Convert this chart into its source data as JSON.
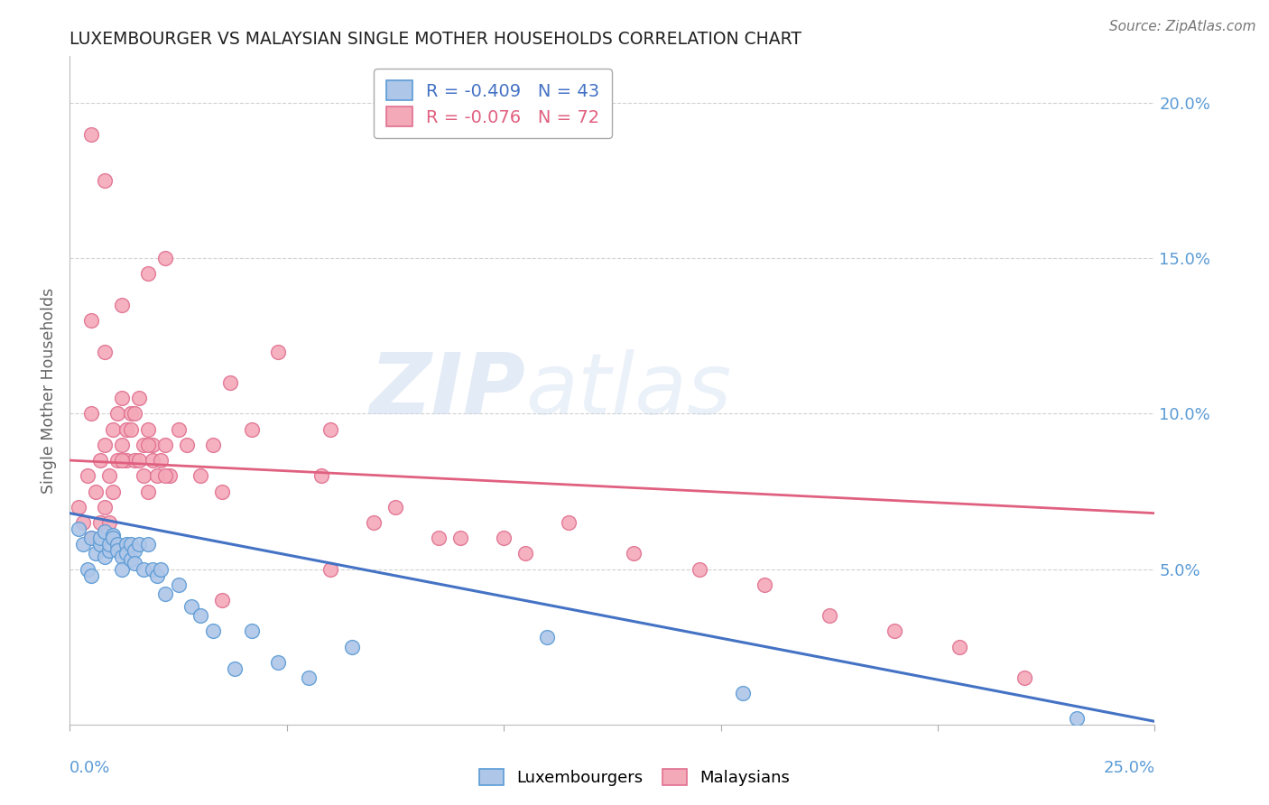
{
  "title": "LUXEMBOURGER VS MALAYSIAN SINGLE MOTHER HOUSEHOLDS CORRELATION CHART",
  "source": "Source: ZipAtlas.com",
  "ylabel": "Single Mother Households",
  "ytick_labels": [
    "5.0%",
    "10.0%",
    "15.0%",
    "20.0%"
  ],
  "ytick_values": [
    0.05,
    0.1,
    0.15,
    0.2
  ],
  "xtick_values": [
    0.0,
    0.05,
    0.1,
    0.15,
    0.2,
    0.25
  ],
  "xlim": [
    0.0,
    0.25
  ],
  "ylim": [
    0.0,
    0.215
  ],
  "background_color": "#ffffff",
  "grid_color": "#cccccc",
  "title_color": "#222222",
  "source_color": "#777777",
  "tick_label_color": "#5b9bd5",
  "ylabel_color": "#666666",
  "lux_color": "#aec6e8",
  "mal_color": "#f4a9b8",
  "lux_edge_color": "#5b9bd5",
  "mal_edge_color": "#e07090",
  "lux_line_color": "#4472c4",
  "mal_line_color": "#e06080",
  "legend_lux_label": "R = -0.409   N = 43",
  "legend_mal_label": "R = -0.076   N = 72",
  "watermark_zip": "ZIP",
  "watermark_atlas": "atlas",
  "lux_scatter_x": [
    0.002,
    0.003,
    0.004,
    0.005,
    0.005,
    0.006,
    0.007,
    0.007,
    0.008,
    0.008,
    0.009,
    0.009,
    0.01,
    0.01,
    0.011,
    0.011,
    0.012,
    0.012,
    0.013,
    0.013,
    0.014,
    0.014,
    0.015,
    0.015,
    0.016,
    0.017,
    0.018,
    0.019,
    0.02,
    0.021,
    0.022,
    0.025,
    0.028,
    0.03,
    0.033,
    0.038,
    0.042,
    0.048,
    0.055,
    0.065,
    0.11,
    0.155,
    0.232
  ],
  "lux_scatter_y": [
    0.063,
    0.058,
    0.05,
    0.048,
    0.06,
    0.055,
    0.058,
    0.06,
    0.054,
    0.062,
    0.056,
    0.058,
    0.061,
    0.06,
    0.058,
    0.056,
    0.054,
    0.05,
    0.058,
    0.055,
    0.053,
    0.058,
    0.056,
    0.052,
    0.058,
    0.05,
    0.058,
    0.05,
    0.048,
    0.05,
    0.042,
    0.045,
    0.038,
    0.035,
    0.03,
    0.018,
    0.03,
    0.02,
    0.015,
    0.025,
    0.028,
    0.01,
    0.002
  ],
  "mal_scatter_x": [
    0.002,
    0.003,
    0.004,
    0.005,
    0.005,
    0.006,
    0.007,
    0.007,
    0.008,
    0.008,
    0.009,
    0.009,
    0.01,
    0.01,
    0.011,
    0.011,
    0.012,
    0.012,
    0.013,
    0.013,
    0.014,
    0.014,
    0.015,
    0.015,
    0.016,
    0.016,
    0.017,
    0.017,
    0.018,
    0.018,
    0.019,
    0.019,
    0.02,
    0.021,
    0.022,
    0.023,
    0.025,
    0.027,
    0.03,
    0.033,
    0.037,
    0.042,
    0.048,
    0.058,
    0.07,
    0.085,
    0.1,
    0.115,
    0.13,
    0.145,
    0.16,
    0.175,
    0.19,
    0.205,
    0.22,
    0.005,
    0.008,
    0.012,
    0.018,
    0.022,
    0.035,
    0.06,
    0.075,
    0.09,
    0.105,
    0.005,
    0.008,
    0.012,
    0.018,
    0.022,
    0.035,
    0.06
  ],
  "mal_scatter_y": [
    0.07,
    0.065,
    0.08,
    0.06,
    0.1,
    0.075,
    0.065,
    0.085,
    0.07,
    0.09,
    0.065,
    0.08,
    0.075,
    0.095,
    0.085,
    0.1,
    0.105,
    0.09,
    0.095,
    0.085,
    0.1,
    0.095,
    0.1,
    0.085,
    0.105,
    0.085,
    0.09,
    0.08,
    0.095,
    0.075,
    0.085,
    0.09,
    0.08,
    0.085,
    0.09,
    0.08,
    0.095,
    0.09,
    0.08,
    0.09,
    0.11,
    0.095,
    0.12,
    0.08,
    0.065,
    0.06,
    0.06,
    0.065,
    0.055,
    0.05,
    0.045,
    0.035,
    0.03,
    0.025,
    0.015,
    0.19,
    0.175,
    0.135,
    0.145,
    0.15,
    0.075,
    0.095,
    0.07,
    0.06,
    0.055,
    0.13,
    0.12,
    0.085,
    0.09,
    0.08,
    0.04,
    0.05
  ],
  "lux_trendline_x": [
    0.0,
    0.25
  ],
  "lux_trendline_y": [
    0.068,
    0.001
  ],
  "mal_trendline_x": [
    0.0,
    0.25
  ],
  "mal_trendline_y": [
    0.085,
    0.068
  ]
}
